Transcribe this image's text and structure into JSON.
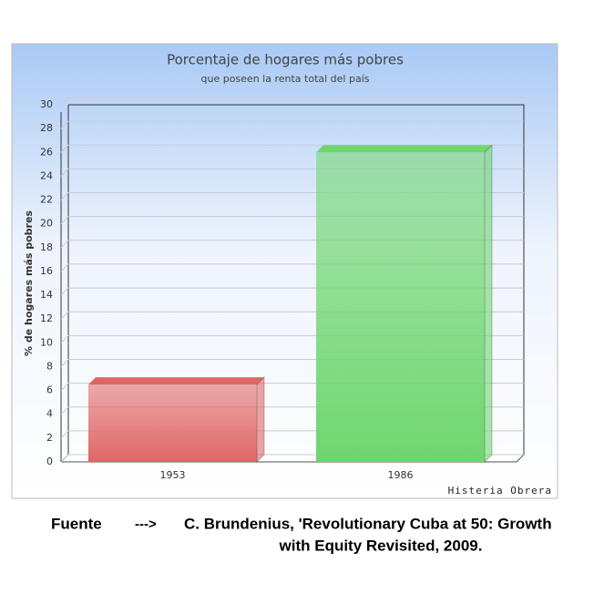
{
  "chart_data": {
    "type": "bar3d",
    "title": "Porcentaje de hogares más pobres",
    "subtitle": "que poseen la renta total del país",
    "y_label": "% de hogares más pobres",
    "categories": [
      "1953",
      "1986"
    ],
    "values": [
      6.5,
      26
    ],
    "colors": [
      "#e06666",
      "#6fd66f"
    ],
    "ylim": [
      0,
      30
    ],
    "yticks": [
      0,
      2,
      4,
      6,
      8,
      10,
      12,
      14,
      16,
      18,
      20,
      22,
      24,
      26,
      28,
      30
    ],
    "grid": true,
    "watermark": "Histeria Obrera"
  },
  "footer": {
    "label": "Fuente",
    "arrow": "--->",
    "source": [
      "C. Brundenius, 'Revolutionary Cuba at 50: Growth",
      "with Equity Revisited, 2009."
    ]
  }
}
